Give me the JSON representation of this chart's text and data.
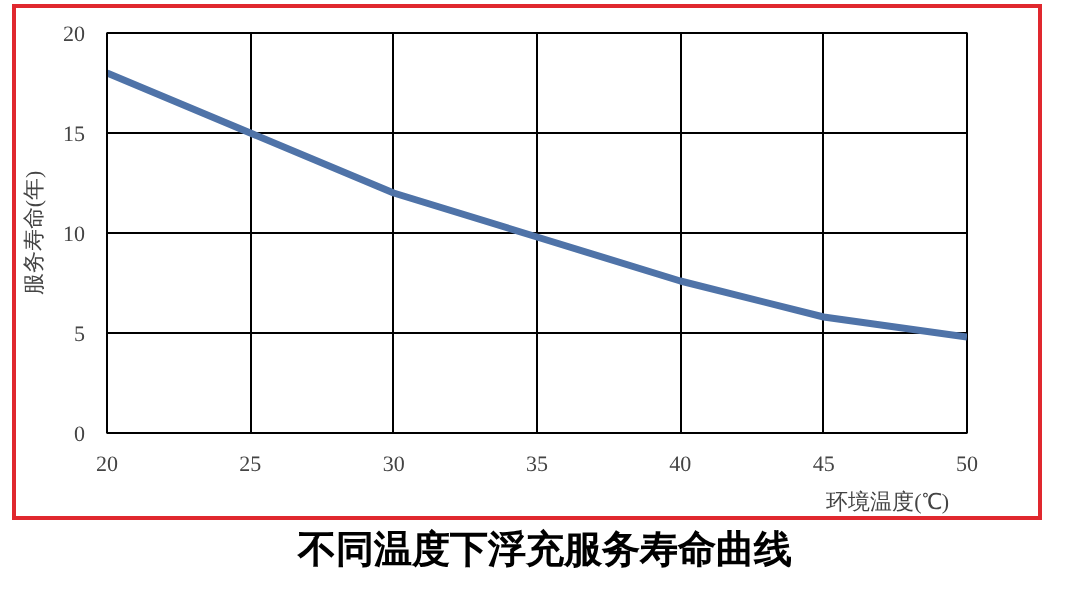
{
  "chart_data": {
    "type": "line",
    "title": "不同温度下浮充服务寿命曲线",
    "xlabel": "环境温度(℃)",
    "ylabel": "服务寿命(年)",
    "x": [
      20,
      25,
      30,
      35,
      40,
      45,
      50
    ],
    "series": [
      {
        "color": "#4f73a8",
        "values": [
          18,
          15,
          12,
          9.8,
          7.6,
          5.8,
          4.8
        ]
      }
    ],
    "xlim": [
      20,
      50
    ],
    "xticks": [
      20,
      25,
      30,
      35,
      40,
      45,
      50
    ],
    "ylim": [
      0,
      20
    ],
    "yticks": [
      0,
      5,
      10,
      15,
      20
    ],
    "grid": true,
    "marker": "none",
    "line_style": "solid"
  }
}
